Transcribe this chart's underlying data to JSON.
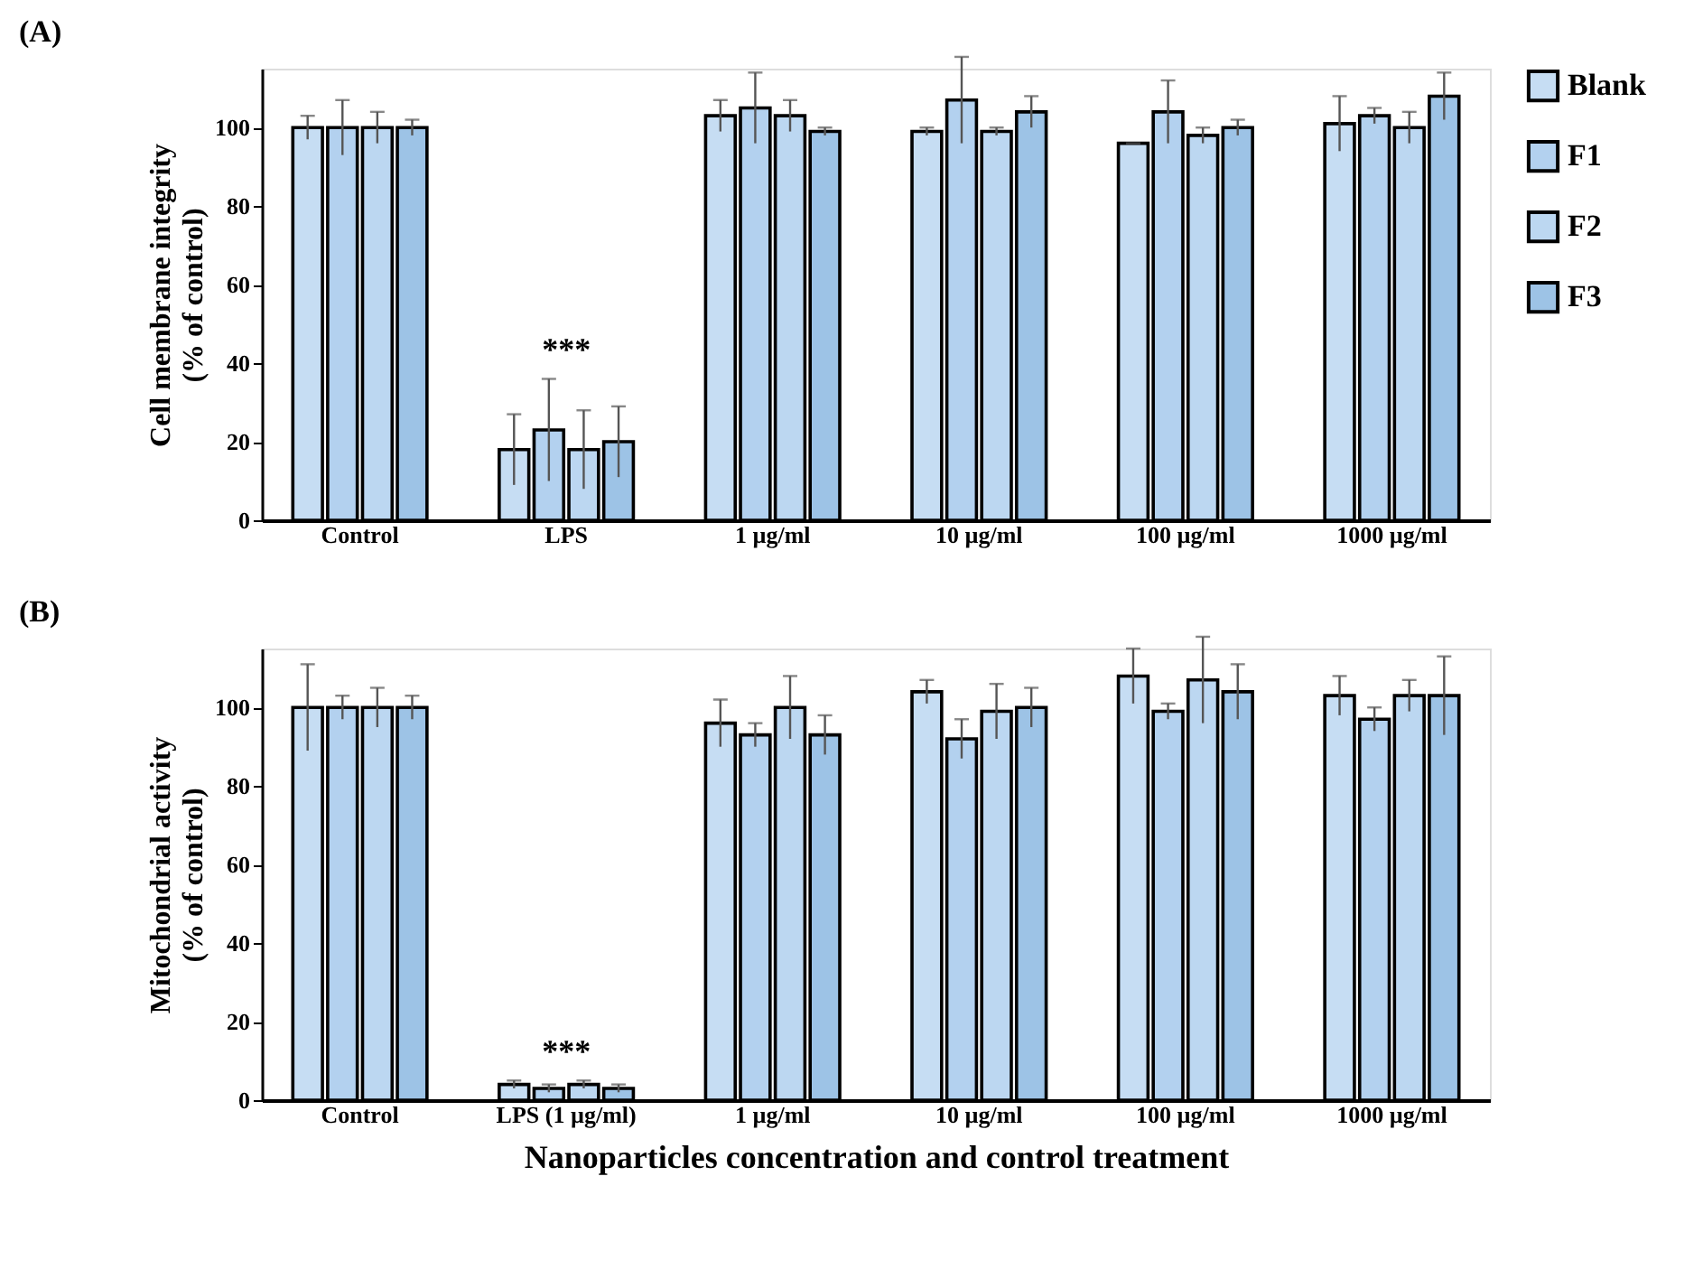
{
  "chart_data": [
    {
      "type": "bar",
      "title": "(A)",
      "ylabel": "Cell membrane integrity\n(% of control)",
      "categories": [
        "Control",
        "LPS",
        "1 µg/ml",
        "10 µg/ml",
        "100 µg/ml",
        "1000 µg/ml"
      ],
      "series": [
        {
          "name": "Blank",
          "color": "#c6ddf3",
          "values": [
            100,
            18,
            103,
            99,
            96,
            101
          ],
          "errors": [
            3,
            9,
            4,
            1,
            0,
            7
          ]
        },
        {
          "name": "F1",
          "color": "#b3d1ef",
          "values": [
            100,
            23,
            105,
            107,
            104,
            103
          ],
          "errors": [
            7,
            13,
            9,
            11,
            8,
            2
          ]
        },
        {
          "name": "F2",
          "color": "#bcd7f1",
          "values": [
            100,
            18,
            103,
            99,
            98,
            100
          ],
          "errors": [
            4,
            10,
            4,
            1,
            2,
            4
          ]
        },
        {
          "name": "F3",
          "color": "#9dc3e6",
          "values": [
            100,
            20,
            99,
            104,
            100,
            108
          ],
          "errors": [
            2,
            9,
            1,
            4,
            2,
            6
          ]
        }
      ],
      "ylim": [
        0,
        115
      ],
      "yticks": [
        0,
        20,
        40,
        60,
        80,
        100
      ],
      "annotations": [
        "***"
      ],
      "grid": false,
      "legend": "right"
    },
    {
      "type": "bar",
      "title": "(B)",
      "ylabel": "Mitochondrial activity\n(% of control)",
      "xlabel": "Nanoparticles concentration and control treatment",
      "categories": [
        "Control",
        "LPS (1 µg/ml)",
        "1 µg/ml",
        "10 µg/ml",
        "100 µg/ml",
        "1000 µg/ml"
      ],
      "series": [
        {
          "name": "Blank",
          "color": "#c6ddf3",
          "values": [
            100,
            4,
            96,
            104,
            108,
            103
          ],
          "errors": [
            11,
            1,
            6,
            3,
            7,
            5
          ]
        },
        {
          "name": "F1",
          "color": "#b3d1ef",
          "values": [
            100,
            3,
            93,
            92,
            99,
            97
          ],
          "errors": [
            3,
            1,
            3,
            5,
            2,
            3
          ]
        },
        {
          "name": "F2",
          "color": "#bcd7f1",
          "values": [
            100,
            4,
            100,
            99,
            107,
            103
          ],
          "errors": [
            5,
            1,
            8,
            7,
            11,
            4
          ]
        },
        {
          "name": "F3",
          "color": "#9dc3e6",
          "values": [
            100,
            3,
            93,
            100,
            104,
            103
          ],
          "errors": [
            3,
            1,
            5,
            5,
            7,
            10
          ]
        }
      ],
      "ylim": [
        0,
        115
      ],
      "yticks": [
        0,
        20,
        40,
        60,
        80,
        100
      ],
      "annotations": [
        "***"
      ],
      "grid": false
    }
  ]
}
